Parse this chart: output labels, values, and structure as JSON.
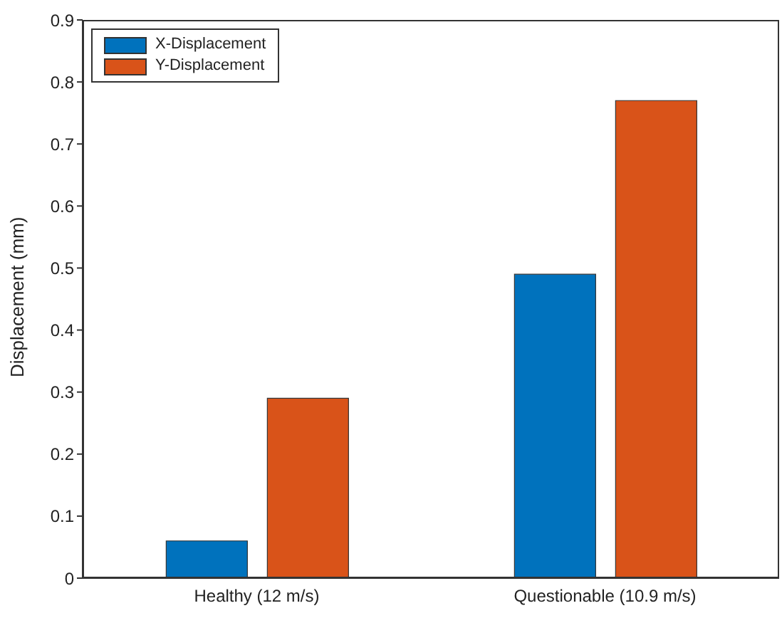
{
  "chart_data": {
    "type": "bar",
    "ylabel": "Displacement (mm)",
    "categories": [
      "Healthy (12 m/s)",
      "Questionable (10.9 m/s)"
    ],
    "series": [
      {
        "name": "X-Displacement",
        "color": "#0072bd",
        "values": [
          0.06,
          0.49
        ]
      },
      {
        "name": "Y-Displacement",
        "color": "#d95319",
        "values": [
          0.29,
          0.77
        ]
      }
    ],
    "ylim": [
      0,
      0.9
    ],
    "yticks": [
      0,
      0.1,
      0.2,
      0.3,
      0.4,
      0.5,
      0.6,
      0.7,
      0.8,
      0.9
    ],
    "grid": false,
    "legend": "top left"
  }
}
